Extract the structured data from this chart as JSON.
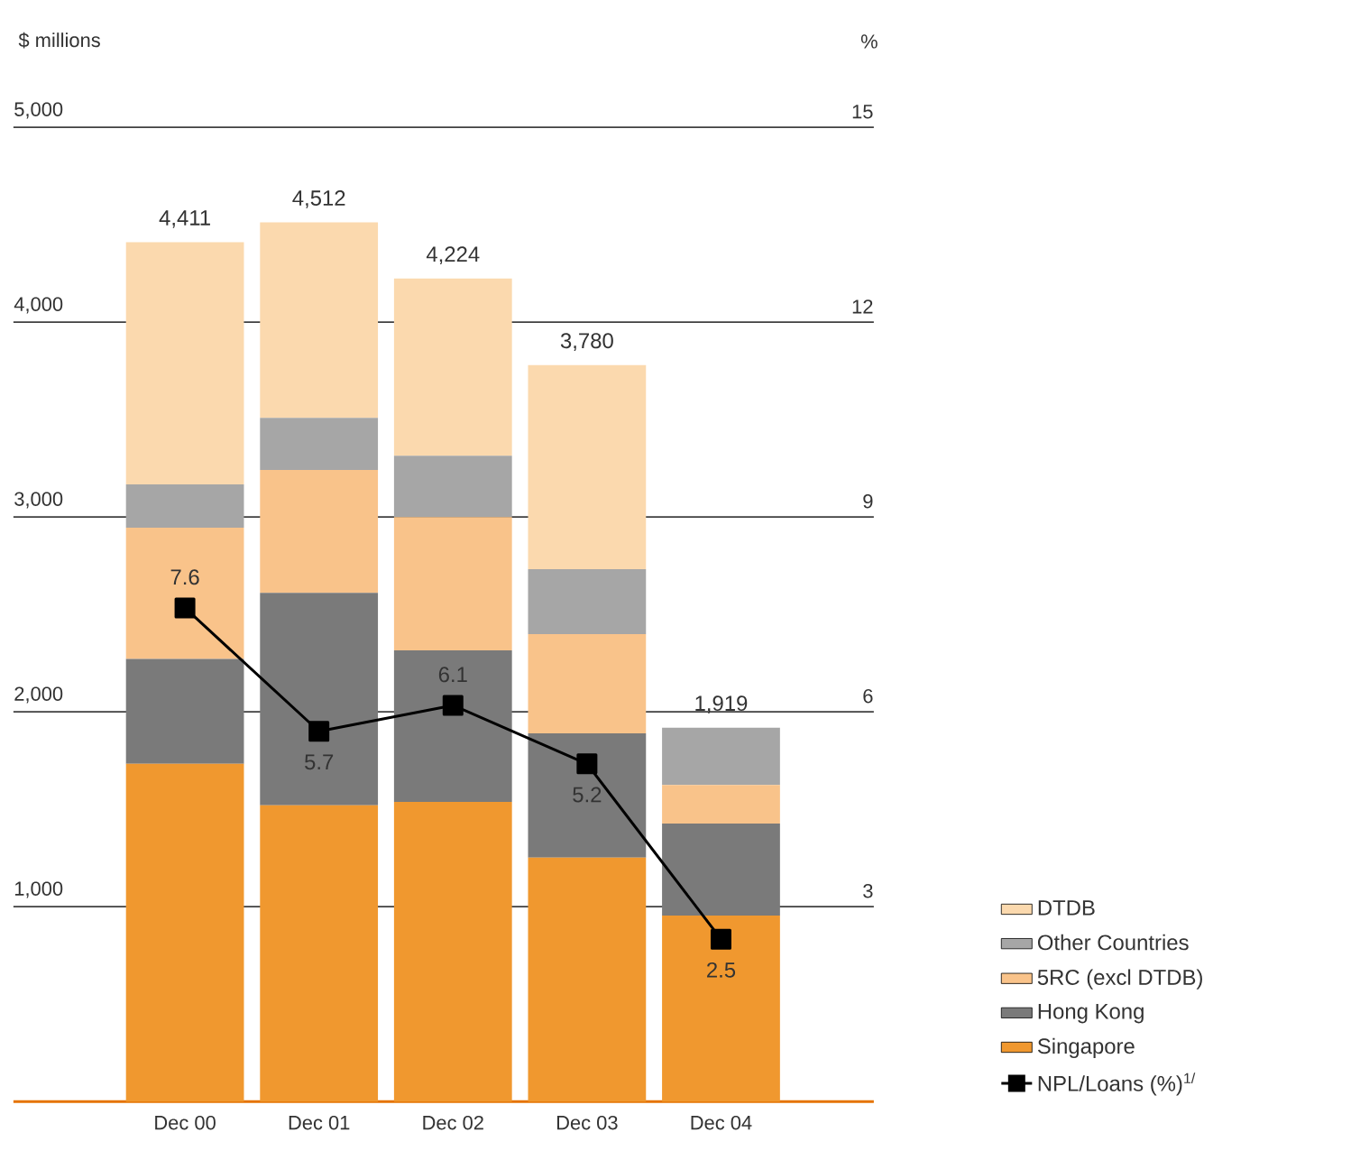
{
  "chart_data": {
    "type": "bar",
    "stacked": true,
    "ylabel": "$ millions",
    "y2label": "%",
    "categories": [
      "Dec 00",
      "Dec 01",
      "Dec 02",
      "Dec 03",
      "Dec 04"
    ],
    "series": [
      {
        "name": "Singapore",
        "color": "#f0982f",
        "values": [
          1733,
          1520,
          1538,
          1252,
          955
        ]
      },
      {
        "name": "Hong Kong",
        "color": "#7a7a7a",
        "values": [
          539,
          1091,
          778,
          638,
          472
        ]
      },
      {
        "name": "5RC (excl DTDB)",
        "color": "#f9c38a",
        "values": [
          673,
          630,
          684,
          509,
          198
        ]
      },
      {
        "name": "Other Countries",
        "color": "#a6a6a6",
        "values": [
          222,
          268,
          315,
          333,
          294
        ]
      },
      {
        "name": "DTDB",
        "color": "#fbd9ae",
        "values": [
          1244,
          1003,
          909,
          1048,
          0
        ]
      },
      {
        "name": "NPL/Loans (%)$^{1/}$",
        "type": "line",
        "axis": "y2",
        "color": "#000000",
        "marker": "square",
        "line_style": "solid",
        "values": [
          7.6,
          5.7,
          6.1,
          5.2,
          2.5
        ],
        "value_labels": [
          "7.6",
          "5.7",
          "6.1",
          "5.2",
          "2.5"
        ]
      }
    ],
    "totals": [
      "4,411",
      "4,512",
      "4,224",
      "3,780",
      "1,919"
    ],
    "ylim": [
      0,
      5000
    ],
    "yticks": [
      {
        "value": 1000,
        "label": "1,000"
      },
      {
        "value": 2000,
        "label": "2,000"
      },
      {
        "value": 3000,
        "label": "3,000"
      },
      {
        "value": 4000,
        "label": "4,000"
      },
      {
        "value": 5000,
        "label": "5,000"
      }
    ],
    "y2lim": [
      0,
      15
    ],
    "y2ticks": [
      3,
      6,
      9,
      12,
      15
    ],
    "grid": "y",
    "legend": "right"
  }
}
